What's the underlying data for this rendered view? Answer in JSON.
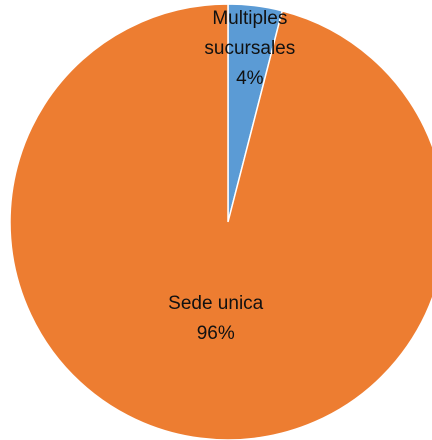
{
  "chart_data": {
    "type": "pie",
    "categories": [
      "Multiples sucursales",
      "Sede unica"
    ],
    "values": [
      4,
      96
    ],
    "value_labels": [
      "4%",
      "96%"
    ],
    "colors": [
      "#5b9bd5",
      "#ed7d31"
    ]
  }
}
